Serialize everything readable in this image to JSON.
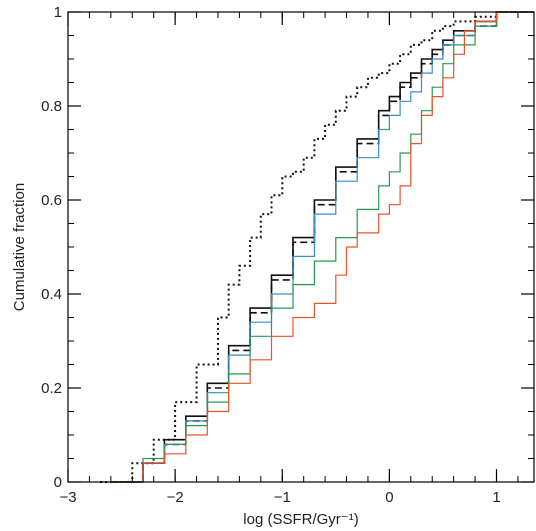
{
  "chart_data": {
    "type": "line",
    "title": "",
    "xlabel": "log (SSFR/Gyr⁻¹)",
    "ylabel": "Cumulative fraction",
    "xlim": [
      -3,
      1.35
    ],
    "ylim": [
      0,
      1
    ],
    "grid": false,
    "legend": "none",
    "x_ticks": [
      -3,
      -2,
      -1,
      0,
      1
    ],
    "x_tick_labels": [
      "−3",
      "−2",
      "−1",
      "0",
      "1"
    ],
    "y_ticks": [
      0,
      0.2,
      0.4,
      0.6,
      0.8,
      1
    ],
    "y_tick_labels": [
      "0",
      "0.2",
      "0.4",
      "0.6",
      "0.8",
      "1"
    ],
    "series": [
      {
        "style": "dotted",
        "color": "#111111",
        "x": [
          -2.7,
          -2.4,
          -2.2,
          -2.0,
          -1.8,
          -1.6,
          -1.5,
          -1.4,
          -1.3,
          -1.2,
          -1.1,
          -1.0,
          -0.9,
          -0.8,
          -0.7,
          -0.6,
          -0.5,
          -0.4,
          -0.3,
          -0.2,
          -0.1,
          0.0,
          0.1,
          0.2,
          0.3,
          0.4,
          0.5,
          0.6,
          0.8,
          1.0
        ],
        "y": [
          0.0,
          0.04,
          0.09,
          0.17,
          0.25,
          0.35,
          0.42,
          0.46,
          0.52,
          0.57,
          0.61,
          0.65,
          0.66,
          0.69,
          0.73,
          0.76,
          0.79,
          0.82,
          0.84,
          0.86,
          0.87,
          0.89,
          0.91,
          0.93,
          0.94,
          0.96,
          0.97,
          0.98,
          0.99,
          1.0
        ]
      },
      {
        "style": "solid",
        "color": "#111111",
        "x": [
          -2.6,
          -2.3,
          -2.1,
          -1.9,
          -1.7,
          -1.5,
          -1.3,
          -1.1,
          -0.9,
          -0.7,
          -0.5,
          -0.3,
          -0.1,
          0.0,
          0.1,
          0.2,
          0.3,
          0.4,
          0.5,
          0.6,
          0.8,
          1.0
        ],
        "y": [
          0.0,
          0.04,
          0.09,
          0.14,
          0.21,
          0.29,
          0.37,
          0.44,
          0.52,
          0.6,
          0.67,
          0.73,
          0.79,
          0.82,
          0.85,
          0.87,
          0.9,
          0.92,
          0.94,
          0.96,
          0.98,
          1.0
        ]
      },
      {
        "style": "dashed",
        "color": "#111111",
        "x": [
          -2.6,
          -2.3,
          -2.1,
          -1.9,
          -1.7,
          -1.5,
          -1.3,
          -1.1,
          -0.9,
          -0.7,
          -0.5,
          -0.3,
          -0.1,
          0.0,
          0.1,
          0.2,
          0.3,
          0.4,
          0.5,
          0.6,
          0.8,
          1.0
        ],
        "y": [
          0.0,
          0.04,
          0.08,
          0.13,
          0.2,
          0.28,
          0.36,
          0.43,
          0.51,
          0.59,
          0.66,
          0.72,
          0.78,
          0.81,
          0.84,
          0.86,
          0.89,
          0.91,
          0.93,
          0.95,
          0.97,
          1.0
        ]
      },
      {
        "style": "solid",
        "color": "#3a8fc4",
        "x": [
          -2.6,
          -2.3,
          -2.1,
          -1.9,
          -1.7,
          -1.5,
          -1.3,
          -1.1,
          -0.9,
          -0.7,
          -0.5,
          -0.3,
          -0.1,
          0.0,
          0.1,
          0.2,
          0.3,
          0.4,
          0.5,
          0.6,
          0.8,
          1.0
        ],
        "y": [
          0.0,
          0.04,
          0.08,
          0.13,
          0.19,
          0.27,
          0.34,
          0.4,
          0.48,
          0.57,
          0.64,
          0.69,
          0.75,
          0.78,
          0.81,
          0.83,
          0.87,
          0.9,
          0.93,
          0.95,
          0.97,
          1.0
        ]
      },
      {
        "style": "solid",
        "color": "#2a9a50",
        "x": [
          -2.6,
          -2.3,
          -2.1,
          -1.9,
          -1.7,
          -1.5,
          -1.3,
          -1.1,
          -0.9,
          -0.7,
          -0.5,
          -0.3,
          -0.1,
          0.0,
          0.1,
          0.2,
          0.3,
          0.4,
          0.5,
          0.6,
          0.8,
          1.0
        ],
        "y": [
          0.0,
          0.05,
          0.08,
          0.12,
          0.17,
          0.23,
          0.31,
          0.37,
          0.42,
          0.47,
          0.52,
          0.58,
          0.63,
          0.66,
          0.7,
          0.74,
          0.79,
          0.84,
          0.89,
          0.93,
          0.97,
          1.0
        ]
      },
      {
        "style": "solid",
        "color": "#e8542a",
        "x": [
          -2.6,
          -2.3,
          -2.1,
          -1.9,
          -1.7,
          -1.5,
          -1.3,
          -1.1,
          -0.9,
          -0.7,
          -0.5,
          -0.4,
          -0.3,
          -0.1,
          0.0,
          0.1,
          0.2,
          0.3,
          0.4,
          0.5,
          0.6,
          0.7,
          0.8,
          1.0
        ],
        "y": [
          0.0,
          0.04,
          0.06,
          0.1,
          0.15,
          0.21,
          0.26,
          0.31,
          0.35,
          0.38,
          0.44,
          0.5,
          0.53,
          0.57,
          0.59,
          0.63,
          0.72,
          0.78,
          0.82,
          0.86,
          0.91,
          0.96,
          0.98,
          1.0
        ]
      }
    ]
  }
}
